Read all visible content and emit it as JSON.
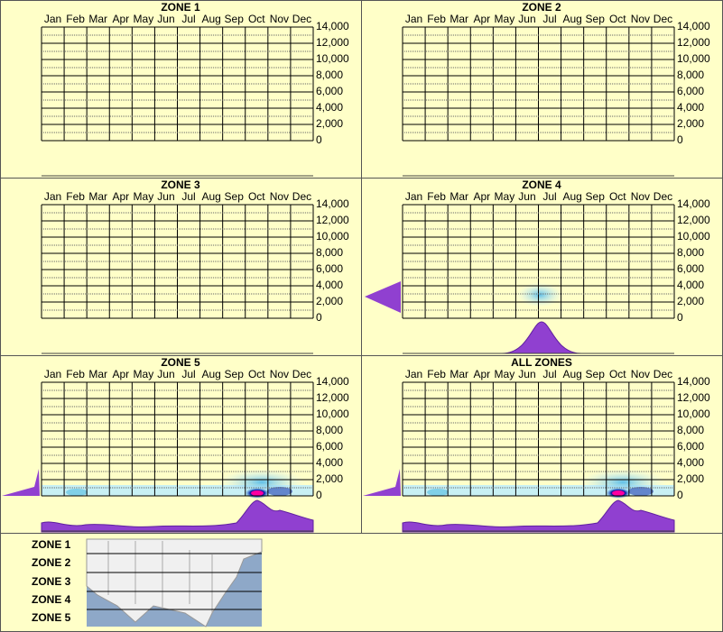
{
  "chart_data": [
    {
      "type": "heatmap",
      "title": "ZONE 1",
      "categories": [
        "Jan",
        "Feb",
        "Mar",
        "Apr",
        "May",
        "Jun",
        "Jul",
        "Aug",
        "Sep",
        "Oct",
        "Nov",
        "Dec"
      ],
      "ylim": [
        0,
        14000
      ],
      "yticks": [
        0,
        {
          "value": 2000,
          "label": "2,000"
        },
        {
          "value": 4000,
          "label": "4,000"
        },
        {
          "value": 6000,
          "label": "6,000"
        },
        {
          "value": 8000,
          "label": "8,000"
        },
        {
          "value": 10000,
          "label": "10,000"
        },
        {
          "value": 12000,
          "label": "12,000"
        },
        {
          "value": 14000,
          "label": "14,000"
        }
      ],
      "grid": true,
      "minor_grid": true
    },
    {
      "type": "heatmap",
      "title": "ZONE 2",
      "categories": [
        "Jan",
        "Feb",
        "Mar",
        "Apr",
        "May",
        "Jun",
        "Jul",
        "Aug",
        "Sep",
        "Oct",
        "Nov",
        "Dec"
      ],
      "ylim": [
        0,
        14000
      ],
      "yticks": [
        0,
        {
          "value": 2000,
          "label": "2,000"
        },
        {
          "value": 4000,
          "label": "4,000"
        },
        {
          "value": 6000,
          "label": "6,000"
        },
        {
          "value": 8000,
          "label": "8,000"
        },
        {
          "value": 10000,
          "label": "10,000"
        },
        {
          "value": 12000,
          "label": "12,000"
        },
        {
          "value": 14000,
          "label": "14,000"
        }
      ],
      "grid": true,
      "minor_grid": true
    },
    {
      "type": "heatmap",
      "title": "ZONE 3",
      "categories": [
        "Jan",
        "Feb",
        "Mar",
        "Apr",
        "May",
        "Jun",
        "Jul",
        "Aug",
        "Sep",
        "Oct",
        "Nov",
        "Dec"
      ],
      "ylim": [
        0,
        14000
      ],
      "yticks": [
        0,
        {
          "value": 2000,
          "label": "2,000"
        },
        {
          "value": 4000,
          "label": "4,000"
        },
        {
          "value": 6000,
          "label": "6,000"
        },
        {
          "value": 8000,
          "label": "8,000"
        },
        {
          "value": 10000,
          "label": "10,000"
        },
        {
          "value": 12000,
          "label": "12,000"
        },
        {
          "value": 14000,
          "label": "14,000"
        }
      ],
      "grid": true,
      "minor_grid": true
    },
    {
      "type": "heatmap",
      "title": "ZONE 4",
      "categories": [
        "Jan",
        "Feb",
        "Mar",
        "Apr",
        "May",
        "Jun",
        "Jul",
        "Aug",
        "Sep",
        "Oct",
        "Nov",
        "Dec"
      ],
      "ylim": [
        0,
        14000
      ],
      "yticks": [
        0,
        {
          "value": 2000,
          "label": "2,000"
        },
        {
          "value": 4000,
          "label": "4,000"
        },
        {
          "value": 6000,
          "label": "6,000"
        },
        {
          "value": 8000,
          "label": "8,000"
        },
        {
          "value": 10000,
          "label": "10,000"
        },
        {
          "value": 12000,
          "label": "12,000"
        },
        {
          "value": 14000,
          "label": "14,000"
        }
      ],
      "grid": true,
      "minor_grid": true
    },
    {
      "type": "heatmap",
      "title": "ZONE 5",
      "categories": [
        "Jan",
        "Feb",
        "Mar",
        "Apr",
        "May",
        "Jun",
        "Jul",
        "Aug",
        "Sep",
        "Oct",
        "Nov",
        "Dec"
      ],
      "ylim": [
        0,
        14000
      ],
      "yticks": [
        0,
        {
          "value": 2000,
          "label": "2,000"
        },
        {
          "value": 4000,
          "label": "4,000"
        },
        {
          "value": 6000,
          "label": "6,000"
        },
        {
          "value": 8000,
          "label": "8,000"
        },
        {
          "value": 10000,
          "label": "10,000"
        },
        {
          "value": 12000,
          "label": "12,000"
        },
        {
          "value": 14000,
          "label": "14,000"
        }
      ],
      "grid": true,
      "minor_grid": true
    },
    {
      "type": "heatmap",
      "title": "ALL ZONES",
      "categories": [
        "Jan",
        "Feb",
        "Mar",
        "Apr",
        "May",
        "Jun",
        "Jul",
        "Aug",
        "Sep",
        "Oct",
        "Nov",
        "Dec"
      ],
      "ylim": [
        0,
        14000
      ],
      "yticks": [
        0,
        {
          "value": 2000,
          "label": "2,000"
        },
        {
          "value": 4000,
          "label": "4,000"
        },
        {
          "value": 6000,
          "label": "6,000"
        },
        {
          "value": 8000,
          "label": "8,000"
        },
        {
          "value": 10000,
          "label": "10,000"
        },
        {
          "value": 12000,
          "label": "12,000"
        },
        {
          "value": 14000,
          "label": "14,000"
        }
      ],
      "grid": true,
      "minor_grid": true
    }
  ],
  "map_legend": [
    "ZONE 1",
    "ZONE 2",
    "ZONE 3",
    "ZONE 4",
    "ZONE 5"
  ]
}
